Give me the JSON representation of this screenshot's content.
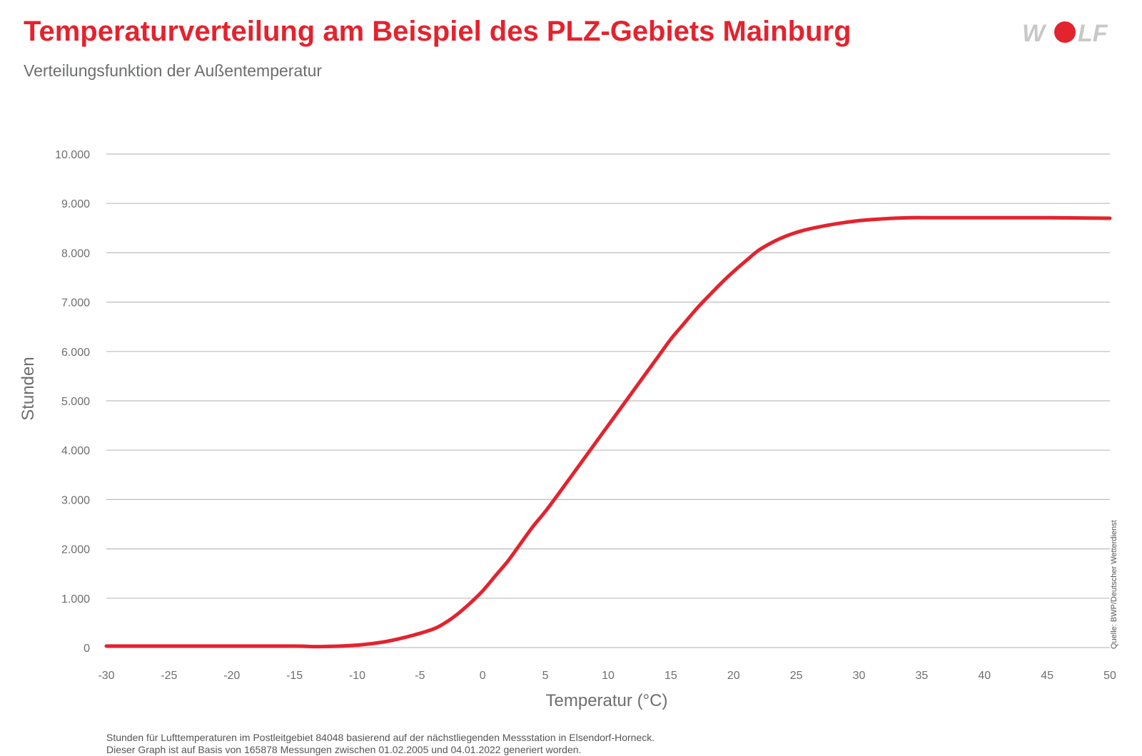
{
  "header": {
    "title": "Temperaturverteilung am Beispiel des PLZ-Gebiets Mainburg",
    "subtitle": "Verteilungsfunktion der Außentemperatur"
  },
  "logo": {
    "text": "WOLF",
    "icon": "wolf-logo-red-dot",
    "color_gray": "#c8c8c8",
    "color_red": "#e3232e"
  },
  "source_note": "Quelle: BWP/Deutscher Wetterdienst",
  "footnote": {
    "line1": "Stunden für Lufttemperaturen im Postleitgebiet 84048 basierend auf der nächstliegenden Messstation in Elsendorf-Horneck.",
    "line2": "Dieser Graph ist auf Basis von 165878 Messungen zwischen 01.02.2005 und 04.01.2022 generiert worden."
  },
  "colors": {
    "accent": "#e3232e",
    "grid": "#bdbdbd",
    "text": "#6d6e70"
  },
  "chart_data": {
    "type": "line",
    "title": "Temperaturverteilung am Beispiel des PLZ-Gebiets Mainburg",
    "subtitle": "Verteilungsfunktion der Außentemperatur",
    "xlabel": "Temperatur (°C)",
    "ylabel": "Stunden",
    "xlim": [
      -30,
      50
    ],
    "ylim": [
      0,
      10000
    ],
    "x_ticks": [
      -30,
      -25,
      -20,
      -15,
      -10,
      -5,
      0,
      5,
      10,
      15,
      20,
      25,
      30,
      35,
      40,
      45,
      50
    ],
    "x_tick_labels": [
      "-30",
      "-25",
      "-20",
      "-15",
      "-10",
      "-5",
      "0",
      "5",
      "10",
      "15",
      "20",
      "25",
      "30",
      "35",
      "40",
      "45",
      "50"
    ],
    "y_ticks": [
      0,
      1000,
      2000,
      3000,
      4000,
      5000,
      6000,
      7000,
      8000,
      9000,
      10000
    ],
    "y_tick_labels": [
      "0",
      "1.000",
      "2.000",
      "3.000",
      "4.000",
      "5.000",
      "6.000",
      "7.000",
      "8.000",
      "9.000",
      "10.000"
    ],
    "grid": true,
    "series": [
      {
        "color": "#e3232e",
        "x": [
          -30,
          -25,
          -20,
          -15,
          -13,
          -10,
          -8,
          -6,
          -4,
          -3,
          -2,
          -1,
          0,
          1,
          2,
          3,
          4,
          5,
          6,
          7,
          8,
          9,
          10,
          11,
          12,
          13,
          14,
          15,
          16,
          17,
          18,
          19,
          20,
          21,
          22,
          23,
          24,
          25,
          26,
          28,
          30,
          32,
          34,
          36,
          40,
          45,
          50
        ],
        "y": [
          30,
          30,
          30,
          30,
          20,
          50,
          110,
          220,
          370,
          500,
          680,
          900,
          1150,
          1450,
          1750,
          2100,
          2450,
          2760,
          3100,
          3450,
          3800,
          4150,
          4500,
          4850,
          5200,
          5550,
          5900,
          6250,
          6550,
          6850,
          7120,
          7380,
          7620,
          7840,
          8050,
          8200,
          8320,
          8410,
          8480,
          8580,
          8650,
          8690,
          8710,
          8710,
          8710,
          8710,
          8700
        ]
      }
    ]
  }
}
